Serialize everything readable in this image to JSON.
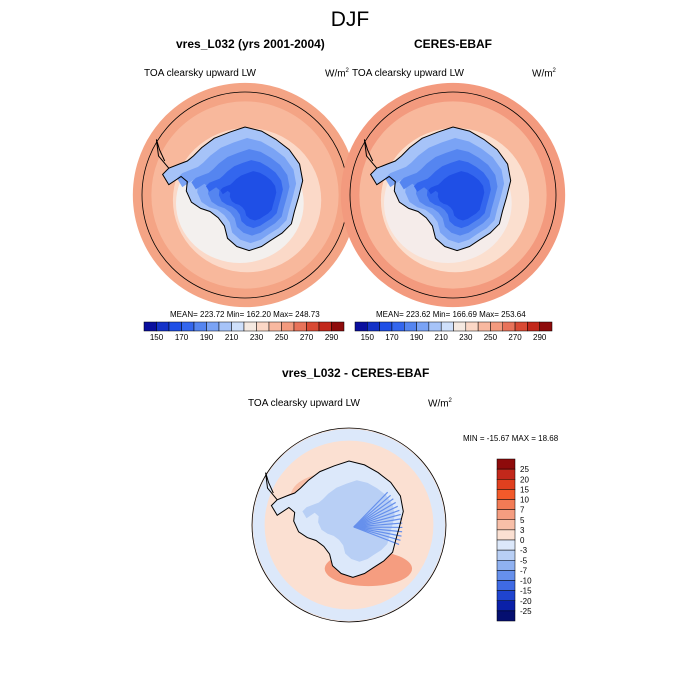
{
  "figure": {
    "title": "DJF"
  },
  "panels": [
    {
      "title": "vres_L032 (yrs 2001-2004)",
      "variable": "TOA clearsky upward LW",
      "units": "W/m",
      "units_exp": "2",
      "stats": "MEAN= 223.72  Min= 162.20  Max= 248.73"
    },
    {
      "title": "CERES-EBAF",
      "variable": "TOA clearsky upward LW",
      "units": "W/m",
      "units_exp": "2",
      "stats": "MEAN= 223.62  Min= 166.69  Max= 253.64"
    },
    {
      "title": "vres_L032 - CERES-EBAF",
      "variable": "TOA clearsky upward LW",
      "units": "W/m",
      "units_exp": "2",
      "stats": "MIN = -15.67 MAX =  18.68"
    }
  ],
  "chart_data": [
    {
      "type": "heatmap",
      "title": "vres_L032 (yrs 2001-2004)",
      "projection": "polar stereographic, south pole",
      "colorbar": {
        "orientation": "horizontal",
        "levels": [
          150,
          160,
          170,
          180,
          190,
          200,
          210,
          220,
          230,
          240,
          250,
          260,
          270,
          280,
          290
        ],
        "tick_labels": [
          "150",
          "170",
          "190",
          "210",
          "230",
          "250",
          "270",
          "290"
        ],
        "colors": [
          "#0a0f9e",
          "#1432c8",
          "#1f4fe6",
          "#3366ee",
          "#5585f0",
          "#7aa3f5",
          "#a6c3f8",
          "#cfe0fb",
          "#f5e9e1",
          "#fbd7c6",
          "#f8b8a0",
          "#f39a7e",
          "#e8735a",
          "#d94a34",
          "#c2281b",
          "#8e0b0b"
        ]
      },
      "stats": {
        "mean": 223.72,
        "min": 162.2,
        "max": 248.73
      }
    },
    {
      "type": "heatmap",
      "title": "CERES-EBAF",
      "projection": "polar stereographic, south pole",
      "colorbar": {
        "orientation": "horizontal",
        "levels": [
          150,
          160,
          170,
          180,
          190,
          200,
          210,
          220,
          230,
          240,
          250,
          260,
          270,
          280,
          290
        ],
        "tick_labels": [
          "150",
          "170",
          "190",
          "210",
          "230",
          "250",
          "270",
          "290"
        ],
        "colors": [
          "#0a0f9e",
          "#1432c8",
          "#1f4fe6",
          "#3366ee",
          "#5585f0",
          "#7aa3f5",
          "#a6c3f8",
          "#cfe0fb",
          "#f5e9e1",
          "#fbd7c6",
          "#f8b8a0",
          "#f39a7e",
          "#e8735a",
          "#d94a34",
          "#c2281b",
          "#8e0b0b"
        ]
      },
      "stats": {
        "mean": 223.62,
        "min": 166.69,
        "max": 253.64
      }
    },
    {
      "type": "heatmap",
      "title": "vres_L032 - CERES-EBAF",
      "projection": "polar stereographic, south pole",
      "colorbar": {
        "orientation": "vertical",
        "tick_labels": [
          "25",
          "20",
          "15",
          "10",
          "7",
          "5",
          "3",
          "0",
          "-3",
          "-5",
          "-7",
          "-10",
          "-15",
          "-20",
          "-25"
        ],
        "colors": [
          "#8e0b0b",
          "#c2281b",
          "#e0401f",
          "#f25a2a",
          "#f27b55",
          "#f59d80",
          "#f8bfa8",
          "#fbe0d2",
          "#dce8fa",
          "#b8cff5",
          "#8fb1f1",
          "#6690ec",
          "#3f6ae4",
          "#1f44cf",
          "#0a20a8",
          "#050f70"
        ]
      },
      "stats": {
        "min": -15.67,
        "max": 18.68
      }
    }
  ]
}
